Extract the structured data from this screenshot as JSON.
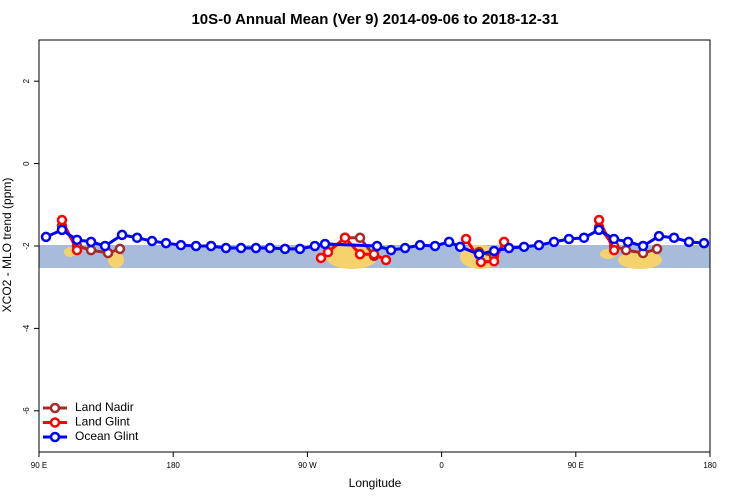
{
  "chart_data": {
    "type": "line",
    "title": "10S-0 Annual Mean (Ver 9)   2014-09-06 to 2018-12-31",
    "x_label": "Longitude",
    "y_label": "XCO2 - MLO trend (ppm)",
    "xlim": [
      90,
      540
    ],
    "xticks": [
      {
        "value": 90,
        "label": "90 E"
      },
      {
        "value": 180,
        "label": "180"
      },
      {
        "value": 270,
        "label": "90 W"
      },
      {
        "value": 360,
        "label": "0"
      },
      {
        "value": 450,
        "label": "90 E"
      },
      {
        "value": 540,
        "label": "180"
      }
    ],
    "ylim": [
      -7,
      3
    ],
    "yticks": [
      -6,
      -4,
      -2,
      0,
      2
    ],
    "legend": "bottom-left",
    "series": [
      {
        "name": "Land Nadir",
        "color": "#a52a2a",
        "x": [
          105.4,
          115.5,
          124.9,
          136.3,
          144.3,
          220,
          295.2,
          305.3,
          314.7,
          350,
          385.1,
          395.2,
          430,
          465.6,
          475.7,
          483.7,
          495.1,
          504.5
        ],
        "values": [
          -1.51,
          -2.0,
          -2.1,
          -2.17,
          -2.07,
          null,
          -1.8,
          -1.8,
          -2.24,
          null,
          -2.15,
          -2.24,
          null,
          -1.54,
          -2.0,
          -2.1,
          -2.17,
          -2.07
        ]
      },
      {
        "name": "Land Glint",
        "color": "#ff0000",
        "x": [
          105.4,
          115.5,
          200,
          279.1,
          283.8,
          295.2,
          305.3,
          314.7,
          322.7,
          350,
          376.4,
          386.4,
          395.2,
          401.9,
          430,
          465.6,
          475.7
        ],
        "values": [
          -1.37,
          -2.1,
          null,
          -2.29,
          -2.15,
          -1.8,
          -2.2,
          -2.2,
          -2.34,
          null,
          -1.83,
          -2.39,
          -2.37,
          -1.9,
          null,
          -1.37,
          -2.1
        ]
      },
      {
        "name": "Ocean Glint",
        "color": "#0000ff",
        "x": [
          94.7,
          105.4,
          115.5,
          124.9,
          134.3,
          145.7,
          155.8,
          165.8,
          175.2,
          185.2,
          195.3,
          205.4,
          215.4,
          225.5,
          235.5,
          244.9,
          255,
          265,
          275,
          281.8,
          316.7,
          326.1,
          335.5,
          345.5,
          355.6,
          365,
          372.4,
          385.1,
          395.2,
          405.2,
          415.3,
          425.3,
          435.4,
          445.4,
          455.5,
          465.5,
          475.6,
          485,
          495.1,
          505.8,
          515.9,
          525.9,
          536
        ],
        "values": [
          -1.78,
          -1.61,
          -1.85,
          -1.9,
          -2.0,
          -1.73,
          -1.8,
          -1.88,
          -1.93,
          -1.98,
          -2.0,
          -2.0,
          -2.05,
          -2.05,
          -2.05,
          -2.05,
          -2.07,
          -2.07,
          -2.0,
          -1.95,
          -2.0,
          -2.1,
          -2.05,
          -1.98,
          -2.0,
          -1.9,
          -2.02,
          -2.2,
          -2.12,
          -2.05,
          -2.02,
          -1.98,
          -1.9,
          -1.83,
          -1.8,
          -1.61,
          -1.83,
          -1.9,
          -2.0,
          -1.76,
          -1.8,
          -1.9,
          -1.93
        ]
      }
    ]
  }
}
